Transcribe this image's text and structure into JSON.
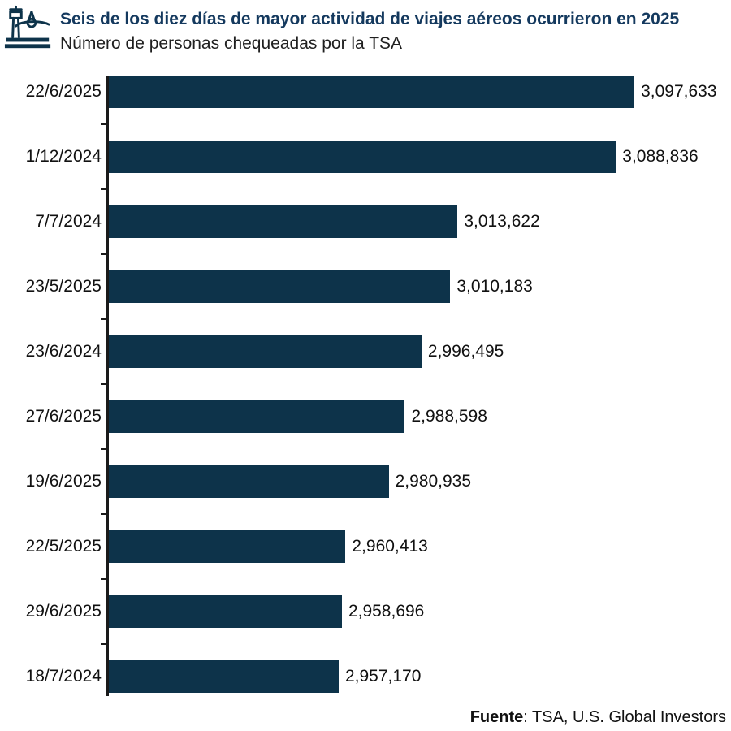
{
  "header": {
    "title": "Seis de los diez días de mayor actividad de viajes aéreos ocurrieron en 2025",
    "subtitle": "Número de personas chequeadas por la TSA",
    "icon": "airport-tower-plane-icon"
  },
  "chart_data": {
    "type": "bar",
    "orientation": "horizontal",
    "title": "Seis de los diez días de mayor actividad de viajes aéreos ocurrieron en 2025",
    "subtitle": "Número de personas chequeadas por la TSA",
    "xlabel": "",
    "ylabel": "",
    "categories": [
      "22/6/2025",
      "1/12/2024",
      "7/7/2024",
      "23/5/2025",
      "23/6/2024",
      "27/6/2025",
      "19/6/2025",
      "22/5/2025",
      "29/6/2025",
      "18/7/2024"
    ],
    "values": [
      3097633,
      3088836,
      3013622,
      3010183,
      2996495,
      2988598,
      2980935,
      2960413,
      2958696,
      2957170
    ],
    "value_labels": [
      "3,097,633",
      "3,088,836",
      "3,013,622",
      "3,010,183",
      "2,996,495",
      "2,988,598",
      "2,980,935",
      "2,960,413",
      "2,958,696",
      "2,957,170"
    ],
    "axis_min": 2848000,
    "axis_max": 3143500,
    "grid": false,
    "legend": false,
    "bar_color": "#0d334a"
  },
  "footer": {
    "source_label": "Fuente",
    "source_rest": ": TSA, U.S. Global Investors"
  },
  "colors": {
    "navy": "#0d334a",
    "title_navy": "#14395e",
    "axis": "#1a1a1a"
  }
}
